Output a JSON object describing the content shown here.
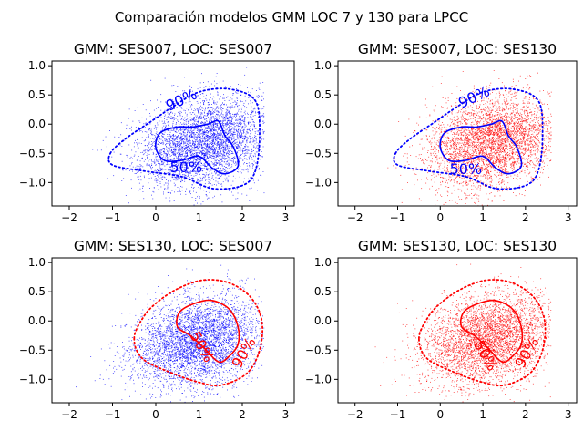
{
  "figure": {
    "suptitle": "Comparación modelos GMM LOC 7 y 130 para LPCC"
  },
  "colors": {
    "ses007": "#0000ff",
    "ses130": "#ff0000"
  },
  "chart_data": [
    {
      "type": "scatter",
      "title": "GMM: SES007, LOC: SES007",
      "xlim": [
        -2.4,
        3.2
      ],
      "ylim": [
        -1.4,
        1.08
      ],
      "xticks": [
        -2,
        -1,
        0,
        1,
        2,
        3
      ],
      "yticks": [
        -1.0,
        -0.5,
        0.0,
        0.5,
        1.0
      ],
      "points_color": "#0000ff",
      "contour_color": "#0000ff",
      "cloud": {
        "center": [
          1.2,
          -0.3
        ],
        "x_range": [
          -2.1,
          2.5
        ],
        "y_range": [
          -1.4,
          1.0
        ],
        "approx_points": 4000
      },
      "contours": [
        {
          "level": "50%",
          "style": "solid",
          "points": [
            [
              0.0,
              -0.4
            ],
            [
              0.1,
              -0.15
            ],
            [
              0.5,
              -0.05
            ],
            [
              0.85,
              -0.05
            ],
            [
              1.2,
              0.0
            ],
            [
              1.45,
              0.05
            ],
            [
              1.6,
              -0.2
            ],
            [
              1.8,
              -0.4
            ],
            [
              1.9,
              -0.72
            ],
            [
              1.6,
              -0.85
            ],
            [
              1.3,
              -0.75
            ],
            [
              1.0,
              -0.55
            ],
            [
              0.6,
              -0.62
            ],
            [
              0.2,
              -0.62
            ],
            [
              0.0,
              -0.4
            ]
          ]
        },
        {
          "level": "90%",
          "style": "dotted",
          "points": [
            [
              -1.05,
              -0.5
            ],
            [
              -0.7,
              -0.25
            ],
            [
              -0.1,
              0.05
            ],
            [
              0.4,
              0.3
            ],
            [
              1.0,
              0.55
            ],
            [
              1.7,
              0.6
            ],
            [
              2.3,
              0.4
            ],
            [
              2.4,
              -0.2
            ],
            [
              2.3,
              -0.8
            ],
            [
              2.0,
              -1.05
            ],
            [
              1.3,
              -1.1
            ],
            [
              0.6,
              -0.9
            ],
            [
              -0.3,
              -0.8
            ],
            [
              -1.0,
              -0.7
            ],
            [
              -1.05,
              -0.5
            ]
          ]
        }
      ],
      "contour_labels": [
        {
          "text": "90%",
          "x": 0.6,
          "y": 0.4,
          "rotate": -25
        },
        {
          "text": "50%",
          "x": 0.7,
          "y": -0.75,
          "rotate": 0
        }
      ]
    },
    {
      "type": "scatter",
      "title": "GMM: SES007, LOC: SES130",
      "xlim": [
        -2.4,
        3.2
      ],
      "ylim": [
        -1.4,
        1.08
      ],
      "xticks": [
        -2,
        -1,
        0,
        1,
        2,
        3
      ],
      "yticks": [
        -1.0,
        -0.5,
        0.0,
        0.5,
        1.0
      ],
      "points_color": "#ff0000",
      "contour_color": "#0000ff",
      "cloud": {
        "center": [
          1.3,
          -0.3
        ],
        "x_range": [
          -1.6,
          2.6
        ],
        "y_range": [
          -1.4,
          1.0
        ],
        "approx_points": 4000
      },
      "contours": [
        {
          "level": "50%",
          "style": "solid",
          "points": [
            [
              0.0,
              -0.4
            ],
            [
              0.1,
              -0.15
            ],
            [
              0.5,
              -0.05
            ],
            [
              0.85,
              -0.05
            ],
            [
              1.2,
              0.0
            ],
            [
              1.45,
              0.05
            ],
            [
              1.6,
              -0.2
            ],
            [
              1.8,
              -0.4
            ],
            [
              1.9,
              -0.72
            ],
            [
              1.6,
              -0.85
            ],
            [
              1.3,
              -0.75
            ],
            [
              1.0,
              -0.55
            ],
            [
              0.6,
              -0.62
            ],
            [
              0.2,
              -0.62
            ],
            [
              0.0,
              -0.4
            ]
          ]
        },
        {
          "level": "90%",
          "style": "dotted",
          "points": [
            [
              -1.05,
              -0.5
            ],
            [
              -0.7,
              -0.25
            ],
            [
              -0.1,
              0.05
            ],
            [
              0.4,
              0.3
            ],
            [
              1.0,
              0.55
            ],
            [
              1.7,
              0.6
            ],
            [
              2.3,
              0.4
            ],
            [
              2.4,
              -0.2
            ],
            [
              2.3,
              -0.8
            ],
            [
              2.0,
              -1.05
            ],
            [
              1.3,
              -1.1
            ],
            [
              0.6,
              -0.9
            ],
            [
              -0.3,
              -0.8
            ],
            [
              -1.0,
              -0.7
            ],
            [
              -1.05,
              -0.5
            ]
          ]
        }
      ],
      "contour_labels": [
        {
          "text": "90%",
          "x": 0.8,
          "y": 0.45,
          "rotate": -25
        },
        {
          "text": "50%",
          "x": 0.6,
          "y": -0.78,
          "rotate": 0
        }
      ]
    },
    {
      "type": "scatter",
      "title": "GMM: SES130, LOC: SES007",
      "xlim": [
        -2.4,
        3.2
      ],
      "ylim": [
        -1.4,
        1.08
      ],
      "xticks": [
        -2,
        -1,
        0,
        1,
        2,
        3
      ],
      "yticks": [
        -1.0,
        -0.5,
        0.0,
        0.5,
        1.0
      ],
      "points_color": "#0000ff",
      "contour_color": "#ff0000",
      "cloud": {
        "center": [
          1.0,
          -0.35
        ],
        "x_range": [
          -2.1,
          2.5
        ],
        "y_range": [
          -1.4,
          1.0
        ],
        "approx_points": 4000
      },
      "contours": [
        {
          "level": "50%",
          "style": "solid",
          "points": [
            [
              0.5,
              -0.1
            ],
            [
              0.55,
              0.15
            ],
            [
              0.9,
              0.3
            ],
            [
              1.3,
              0.35
            ],
            [
              1.7,
              0.2
            ],
            [
              1.9,
              -0.1
            ],
            [
              1.9,
              -0.4
            ],
            [
              1.7,
              -0.6
            ],
            [
              1.45,
              -0.7
            ],
            [
              1.1,
              -0.45
            ],
            [
              0.8,
              -0.25
            ],
            [
              0.5,
              -0.1
            ]
          ]
        },
        {
          "level": "90%",
          "style": "dotted",
          "points": [
            [
              -0.5,
              -0.3
            ],
            [
              -0.3,
              0.05
            ],
            [
              0.0,
              0.3
            ],
            [
              0.5,
              0.55
            ],
            [
              1.1,
              0.7
            ],
            [
              1.7,
              0.65
            ],
            [
              2.2,
              0.4
            ],
            [
              2.45,
              0.0
            ],
            [
              2.4,
              -0.5
            ],
            [
              2.1,
              -0.9
            ],
            [
              1.5,
              -1.1
            ],
            [
              1.0,
              -1.05
            ],
            [
              0.4,
              -0.9
            ],
            [
              -0.3,
              -0.65
            ],
            [
              -0.5,
              -0.3
            ]
          ]
        }
      ],
      "contour_labels": [
        {
          "text": "50%",
          "x": 1.05,
          "y": -0.45,
          "rotate": 60
        },
        {
          "text": "90%",
          "x": 2.05,
          "y": -0.55,
          "rotate": -60
        }
      ]
    },
    {
      "type": "scatter",
      "title": "GMM: SES130, LOC: SES130",
      "xlim": [
        -2.4,
        3.2
      ],
      "ylim": [
        -1.4,
        1.08
      ],
      "xticks": [
        -2,
        -1,
        0,
        1,
        2,
        3
      ],
      "yticks": [
        -1.0,
        -0.5,
        0.0,
        0.5,
        1.0
      ],
      "points_color": "#ff0000",
      "contour_color": "#ff0000",
      "cloud": {
        "center": [
          1.2,
          -0.3
        ],
        "x_range": [
          -1.6,
          2.6
        ],
        "y_range": [
          -1.4,
          1.0
        ],
        "approx_points": 4000
      },
      "contours": [
        {
          "level": "50%",
          "style": "solid",
          "points": [
            [
              0.5,
              -0.1
            ],
            [
              0.55,
              0.15
            ],
            [
              0.9,
              0.3
            ],
            [
              1.3,
              0.35
            ],
            [
              1.7,
              0.2
            ],
            [
              1.9,
              -0.1
            ],
            [
              1.9,
              -0.4
            ],
            [
              1.7,
              -0.6
            ],
            [
              1.45,
              -0.7
            ],
            [
              1.1,
              -0.45
            ],
            [
              0.8,
              -0.25
            ],
            [
              0.5,
              -0.1
            ]
          ]
        },
        {
          "level": "90%",
          "style": "dotted",
          "points": [
            [
              -0.5,
              -0.3
            ],
            [
              -0.3,
              0.05
            ],
            [
              0.0,
              0.3
            ],
            [
              0.5,
              0.55
            ],
            [
              1.1,
              0.7
            ],
            [
              1.7,
              0.65
            ],
            [
              2.2,
              0.4
            ],
            [
              2.45,
              0.0
            ],
            [
              2.4,
              -0.5
            ],
            [
              2.1,
              -0.9
            ],
            [
              1.5,
              -1.1
            ],
            [
              1.0,
              -1.05
            ],
            [
              0.4,
              -0.9
            ],
            [
              -0.3,
              -0.65
            ],
            [
              -0.5,
              -0.3
            ]
          ]
        }
      ],
      "contour_labels": [
        {
          "text": "90%",
          "x": 2.05,
          "y": -0.55,
          "rotate": -60
        },
        {
          "text": "50%",
          "x": 1.05,
          "y": -0.6,
          "rotate": 60
        }
      ]
    }
  ]
}
